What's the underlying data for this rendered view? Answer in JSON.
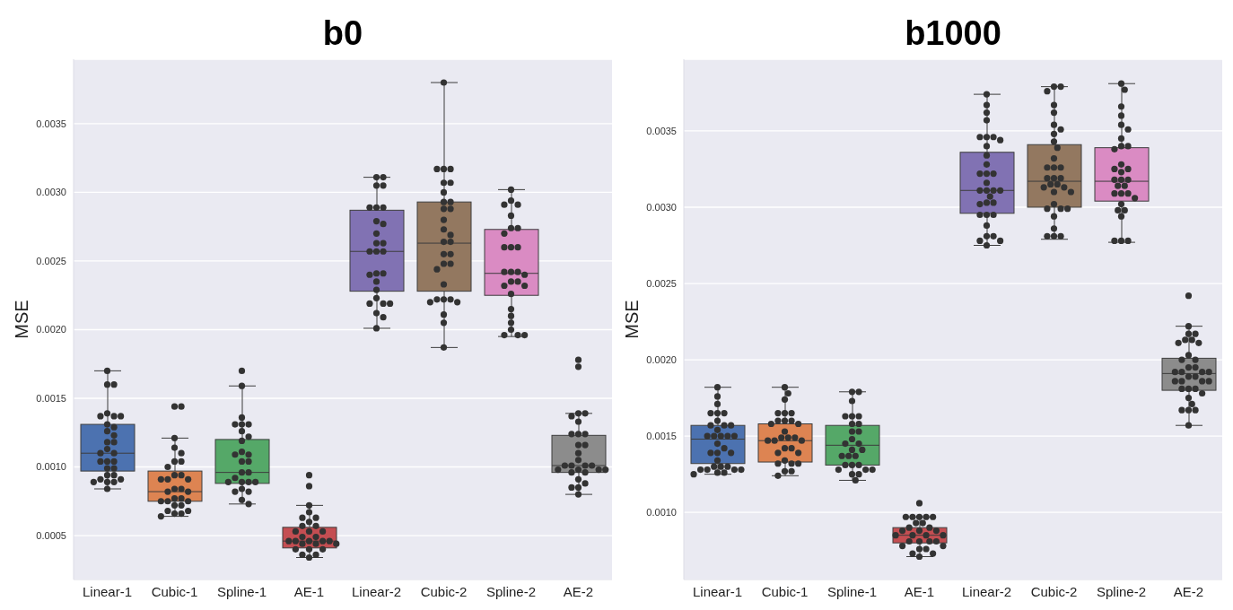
{
  "chart_data": [
    {
      "type": "box",
      "title": "b0",
      "ylabel": "MSE",
      "categories": [
        "Linear-1",
        "Cubic-1",
        "Spline-1",
        "AE-1",
        "Linear-2",
        "Cubic-2",
        "Spline-2",
        "AE-2"
      ],
      "colors": [
        "#4c72b0",
        "#dd8452",
        "#55a868",
        "#c44e52",
        "#8172b3",
        "#937860",
        "#da8bc3",
        "#8c8c8c"
      ],
      "boxes": [
        {
          "low": 0.00084,
          "q1": 0.00097,
          "median": 0.0011,
          "q3": 0.00131,
          "high": 0.0017
        },
        {
          "low": 0.00064,
          "q1": 0.00075,
          "median": 0.00082,
          "q3": 0.00097,
          "high": 0.00121
        },
        {
          "low": 0.00073,
          "q1": 0.00088,
          "median": 0.00096,
          "q3": 0.0012,
          "high": 0.00159
        },
        {
          "low": 0.00034,
          "q1": 0.00041,
          "median": 0.00046,
          "q3": 0.00056,
          "high": 0.00072
        },
        {
          "low": 0.00201,
          "q1": 0.00228,
          "median": 0.00257,
          "q3": 0.00287,
          "high": 0.00311
        },
        {
          "low": 0.00187,
          "q1": 0.00228,
          "median": 0.00263,
          "q3": 0.00293,
          "high": 0.0038
        },
        {
          "low": 0.00195,
          "q1": 0.00225,
          "median": 0.00241,
          "q3": 0.00273,
          "high": 0.00302
        },
        {
          "low": 0.0008,
          "q1": 0.00096,
          "median": 0.00101,
          "q3": 0.00123,
          "high": 0.00139
        }
      ],
      "series": [
        {
          "type": "scatter",
          "color": "#333333",
          "x": [
            "Linear-1",
            "Linear-1",
            "Linear-1",
            "Linear-1",
            "Linear-1",
            "Linear-1",
            "Linear-1",
            "Linear-1",
            "Linear-1",
            "Linear-1",
            "Linear-1",
            "Linear-1",
            "Linear-1",
            "Linear-1",
            "Linear-1",
            "Linear-1",
            "Linear-1",
            "Linear-1",
            "Linear-1",
            "Linear-1",
            "Linear-1",
            "Linear-1",
            "Linear-1",
            "Linear-1",
            "Linear-1",
            "Linear-1",
            "Linear-1",
            "Linear-1",
            "Linear-1",
            "Cubic-1",
            "Cubic-1",
            "Cubic-1",
            "Cubic-1",
            "Cubic-1",
            "Cubic-1",
            "Cubic-1",
            "Cubic-1",
            "Cubic-1",
            "Cubic-1",
            "Cubic-1",
            "Cubic-1",
            "Cubic-1",
            "Cubic-1",
            "Cubic-1",
            "Cubic-1",
            "Cubic-1",
            "Cubic-1",
            "Cubic-1",
            "Cubic-1",
            "Cubic-1",
            "Cubic-1",
            "Cubic-1",
            "Cubic-1",
            "Cubic-1",
            "Cubic-1",
            "Cubic-1",
            "Cubic-1",
            "Cubic-1",
            "Spline-1",
            "Spline-1",
            "Spline-1",
            "Spline-1",
            "Spline-1",
            "Spline-1",
            "Spline-1",
            "Spline-1",
            "Spline-1",
            "Spline-1",
            "Spline-1",
            "Spline-1",
            "Spline-1",
            "Spline-1",
            "Spline-1",
            "Spline-1",
            "Spline-1",
            "Spline-1",
            "Spline-1",
            "Spline-1",
            "Spline-1",
            "Spline-1",
            "Spline-1",
            "Spline-1",
            "Spline-1",
            "Spline-1",
            "AE-1",
            "AE-1",
            "AE-1",
            "AE-1",
            "AE-1",
            "AE-1",
            "AE-1",
            "AE-1",
            "AE-1",
            "AE-1",
            "AE-1",
            "AE-1",
            "AE-1",
            "AE-1",
            "AE-1",
            "AE-1",
            "AE-1",
            "AE-1",
            "AE-1",
            "AE-1",
            "AE-1",
            "AE-1",
            "AE-1",
            "AE-1",
            "AE-1",
            "AE-1",
            "AE-1",
            "AE-1",
            "Linear-2",
            "Linear-2",
            "Linear-2",
            "Linear-2",
            "Linear-2",
            "Linear-2",
            "Linear-2",
            "Linear-2",
            "Linear-2",
            "Linear-2",
            "Linear-2",
            "Linear-2",
            "Linear-2",
            "Linear-2",
            "Linear-2",
            "Linear-2",
            "Linear-2",
            "Linear-2",
            "Linear-2",
            "Linear-2",
            "Linear-2",
            "Linear-2",
            "Linear-2",
            "Linear-2",
            "Linear-2",
            "Linear-2",
            "Linear-2",
            "Cubic-2",
            "Cubic-2",
            "Cubic-2",
            "Cubic-2",
            "Cubic-2",
            "Cubic-2",
            "Cubic-2",
            "Cubic-2",
            "Cubic-2",
            "Cubic-2",
            "Cubic-2",
            "Cubic-2",
            "Cubic-2",
            "Cubic-2",
            "Cubic-2",
            "Cubic-2",
            "Cubic-2",
            "Cubic-2",
            "Cubic-2",
            "Cubic-2",
            "Cubic-2",
            "Cubic-2",
            "Cubic-2",
            "Cubic-2",
            "Cubic-2",
            "Cubic-2",
            "Cubic-2",
            "Cubic-2",
            "Cubic-2",
            "Cubic-2",
            "Spline-2",
            "Spline-2",
            "Spline-2",
            "Spline-2",
            "Spline-2",
            "Spline-2",
            "Spline-2",
            "Spline-2",
            "Spline-2",
            "Spline-2",
            "Spline-2",
            "Spline-2",
            "Spline-2",
            "Spline-2",
            "Spline-2",
            "Spline-2",
            "Spline-2",
            "Spline-2",
            "Spline-2",
            "Spline-2",
            "Spline-2",
            "Spline-2",
            "Spline-2",
            "Spline-2",
            "Spline-2",
            "Spline-2",
            "Spline-2",
            "AE-2",
            "AE-2",
            "AE-2",
            "AE-2",
            "AE-2",
            "AE-2",
            "AE-2",
            "AE-2",
            "AE-2",
            "AE-2",
            "AE-2",
            "AE-2",
            "AE-2",
            "AE-2",
            "AE-2",
            "AE-2",
            "AE-2",
            "AE-2",
            "AE-2",
            "AE-2",
            "AE-2",
            "AE-2",
            "AE-2",
            "AE-2",
            "AE-2",
            "AE-2",
            "AE-2",
            "AE-2"
          ],
          "values": [
            0.0017,
            0.0016,
            0.0016,
            0.00139,
            0.00137,
            0.00137,
            0.00137,
            0.00131,
            0.00129,
            0.00126,
            0.00123,
            0.00118,
            0.00118,
            0.00113,
            0.0011,
            0.0011,
            0.00104,
            0.00104,
            0.00104,
            0.00099,
            0.00099,
            0.00094,
            0.00094,
            0.00091,
            0.00091,
            0.00089,
            0.00089,
            0.00089,
            0.00084,
            0.00144,
            0.00144,
            0.00121,
            0.00114,
            0.0011,
            0.00104,
            0.00104,
            0.001,
            0.00094,
            0.00094,
            0.00091,
            0.00091,
            0.00091,
            0.00084,
            0.00084,
            0.00082,
            0.00082,
            0.00077,
            0.00077,
            0.00075,
            0.00075,
            0.00075,
            0.00072,
            0.00072,
            0.00068,
            0.00068,
            0.00066,
            0.00066,
            0.00064,
            0.0017,
            0.00159,
            0.00136,
            0.00131,
            0.00131,
            0.00131,
            0.00126,
            0.00122,
            0.00119,
            0.00111,
            0.00109,
            0.00109,
            0.00104,
            0.00104,
            0.00096,
            0.00096,
            0.00092,
            0.00089,
            0.00089,
            0.00089,
            0.00089,
            0.00084,
            0.00082,
            0.00082,
            0.00076,
            0.00073,
            0.00094,
            0.00086,
            0.00072,
            0.00067,
            0.00063,
            0.00063,
            0.0006,
            0.00057,
            0.00057,
            0.00053,
            0.00053,
            0.00053,
            0.00049,
            0.00049,
            0.00046,
            0.00046,
            0.00046,
            0.00046,
            0.00046,
            0.00044,
            0.00044,
            0.00044,
            0.0004,
            0.0004,
            0.0004,
            0.00036,
            0.00036,
            0.00034,
            0.00311,
            0.00311,
            0.00305,
            0.00305,
            0.00289,
            0.00289,
            0.00289,
            0.00279,
            0.00277,
            0.0027,
            0.00263,
            0.00263,
            0.00257,
            0.00257,
            0.00257,
            0.00241,
            0.00241,
            0.0024,
            0.00235,
            0.00229,
            0.00223,
            0.00219,
            0.00219,
            0.00219,
            0.00212,
            0.00209,
            0.00201,
            0.0038,
            0.00317,
            0.00317,
            0.00317,
            0.00307,
            0.00307,
            0.003,
            0.00293,
            0.00293,
            0.00288,
            0.00288,
            0.0028,
            0.00273,
            0.00269,
            0.00264,
            0.00264,
            0.00255,
            0.00255,
            0.00248,
            0.00248,
            0.00244,
            0.00233,
            0.00222,
            0.00222,
            0.00222,
            0.0022,
            0.0022,
            0.00211,
            0.00205,
            0.00187,
            0.00302,
            0.00294,
            0.00291,
            0.00291,
            0.00283,
            0.00274,
            0.00274,
            0.0027,
            0.0026,
            0.0026,
            0.0026,
            0.00242,
            0.00242,
            0.00242,
            0.0024,
            0.00235,
            0.00235,
            0.00232,
            0.00232,
            0.00226,
            0.00215,
            0.0021,
            0.00205,
            0.002,
            0.00196,
            0.00196,
            0.00196,
            0.00178,
            0.00173,
            0.00139,
            0.00139,
            0.00137,
            0.00133,
            0.00124,
            0.00124,
            0.00124,
            0.00116,
            0.00116,
            0.0011,
            0.00105,
            0.00101,
            0.00101,
            0.00101,
            0.00101,
            0.00098,
            0.00098,
            0.00098,
            0.00098,
            0.00096,
            0.00096,
            0.00091,
            0.00088,
            0.00085,
            0.00085,
            0.0008
          ]
        }
      ],
      "ylim": [
        0.00018,
        0.00397
      ],
      "yticks": [
        {
          "value": 0.0005,
          "label": "0.0005"
        },
        {
          "value": 0.001,
          "label": "0.0010"
        },
        {
          "value": 0.0015,
          "label": "0.0015"
        },
        {
          "value": 0.002,
          "label": "0.0020"
        },
        {
          "value": 0.0025,
          "label": "0.0025"
        },
        {
          "value": 0.003,
          "label": "0.0030"
        },
        {
          "value": 0.0035,
          "label": "0.0035"
        }
      ],
      "grid": "y"
    },
    {
      "type": "box",
      "title": "b1000",
      "ylabel": "MSE",
      "categories": [
        "Linear-1",
        "Cubic-1",
        "Spline-1",
        "AE-1",
        "Linear-2",
        "Cubic-2",
        "Spline-2",
        "AE-2"
      ],
      "colors": [
        "#4c72b0",
        "#dd8452",
        "#55a868",
        "#c44e52",
        "#8172b3",
        "#937860",
        "#da8bc3",
        "#8c8c8c"
      ],
      "boxes": [
        {
          "low": 0.00125,
          "q1": 0.00132,
          "median": 0.00148,
          "q3": 0.00157,
          "high": 0.00182
        },
        {
          "low": 0.00124,
          "q1": 0.00133,
          "median": 0.00147,
          "q3": 0.00158,
          "high": 0.00182
        },
        {
          "low": 0.00121,
          "q1": 0.00131,
          "median": 0.00144,
          "q3": 0.00157,
          "high": 0.00179
        },
        {
          "low": 0.00071,
          "q1": 0.0008,
          "median": 0.00085,
          "q3": 0.0009,
          "high": 0.00097
        },
        {
          "low": 0.00275,
          "q1": 0.00296,
          "median": 0.00311,
          "q3": 0.00336,
          "high": 0.00374
        },
        {
          "low": 0.00279,
          "q1": 0.003,
          "median": 0.00317,
          "q3": 0.00341,
          "high": 0.00379
        },
        {
          "low": 0.00277,
          "q1": 0.00304,
          "median": 0.00317,
          "q3": 0.00339,
          "high": 0.00381
        },
        {
          "low": 0.00157,
          "q1": 0.0018,
          "median": 0.00191,
          "q3": 0.00201,
          "high": 0.00222
        }
      ],
      "series": [
        {
          "type": "scatter",
          "color": "#333333",
          "x": [
            "Linear-1",
            "Linear-1",
            "Linear-1",
            "Linear-1",
            "Linear-1",
            "Linear-1",
            "Linear-1",
            "Linear-1",
            "Linear-1",
            "Linear-1",
            "Linear-1",
            "Linear-1",
            "Linear-1",
            "Linear-1",
            "Linear-1",
            "Linear-1",
            "Linear-1",
            "Linear-1",
            "Linear-1",
            "Linear-1",
            "Linear-1",
            "Linear-1",
            "Linear-1",
            "Linear-1",
            "Linear-1",
            "Linear-1",
            "Linear-1",
            "Linear-1",
            "Linear-1",
            "Linear-1",
            "Linear-1",
            "Linear-1",
            "Cubic-1",
            "Cubic-1",
            "Cubic-1",
            "Cubic-1",
            "Cubic-1",
            "Cubic-1",
            "Cubic-1",
            "Cubic-1",
            "Cubic-1",
            "Cubic-1",
            "Cubic-1",
            "Cubic-1",
            "Cubic-1",
            "Cubic-1",
            "Cubic-1",
            "Cubic-1",
            "Cubic-1",
            "Cubic-1",
            "Cubic-1",
            "Cubic-1",
            "Cubic-1",
            "Cubic-1",
            "Cubic-1",
            "Cubic-1",
            "Cubic-1",
            "Cubic-1",
            "Cubic-1",
            "Cubic-1",
            "Cubic-1",
            "Spline-1",
            "Spline-1",
            "Spline-1",
            "Spline-1",
            "Spline-1",
            "Spline-1",
            "Spline-1",
            "Spline-1",
            "Spline-1",
            "Spline-1",
            "Spline-1",
            "Spline-1",
            "Spline-1",
            "Spline-1",
            "Spline-1",
            "Spline-1",
            "Spline-1",
            "Spline-1",
            "Spline-1",
            "Spline-1",
            "Spline-1",
            "Spline-1",
            "Spline-1",
            "Spline-1",
            "Spline-1",
            "Spline-1",
            "Spline-1",
            "AE-1",
            "AE-1",
            "AE-1",
            "AE-1",
            "AE-1",
            "AE-1",
            "AE-1",
            "AE-1",
            "AE-1",
            "AE-1",
            "AE-1",
            "AE-1",
            "AE-1",
            "AE-1",
            "AE-1",
            "AE-1",
            "AE-1",
            "AE-1",
            "AE-1",
            "AE-1",
            "AE-1",
            "AE-1",
            "AE-1",
            "AE-1",
            "AE-1",
            "AE-1",
            "AE-1",
            "AE-1",
            "Linear-2",
            "Linear-2",
            "Linear-2",
            "Linear-2",
            "Linear-2",
            "Linear-2",
            "Linear-2",
            "Linear-2",
            "Linear-2",
            "Linear-2",
            "Linear-2",
            "Linear-2",
            "Linear-2",
            "Linear-2",
            "Linear-2",
            "Linear-2",
            "Linear-2",
            "Linear-2",
            "Linear-2",
            "Linear-2",
            "Linear-2",
            "Linear-2",
            "Linear-2",
            "Linear-2",
            "Linear-2",
            "Linear-2",
            "Linear-2",
            "Linear-2",
            "Linear-2",
            "Linear-2",
            "Linear-2",
            "Linear-2",
            "Cubic-2",
            "Cubic-2",
            "Cubic-2",
            "Cubic-2",
            "Cubic-2",
            "Cubic-2",
            "Cubic-2",
            "Cubic-2",
            "Cubic-2",
            "Cubic-2",
            "Cubic-2",
            "Cubic-2",
            "Cubic-2",
            "Cubic-2",
            "Cubic-2",
            "Cubic-2",
            "Cubic-2",
            "Cubic-2",
            "Cubic-2",
            "Cubic-2",
            "Cubic-2",
            "Cubic-2",
            "Cubic-2",
            "Cubic-2",
            "Cubic-2",
            "Cubic-2",
            "Cubic-2",
            "Cubic-2",
            "Cubic-2",
            "Cubic-2",
            "Cubic-2",
            "Cubic-2",
            "Spline-2",
            "Spline-2",
            "Spline-2",
            "Spline-2",
            "Spline-2",
            "Spline-2",
            "Spline-2",
            "Spline-2",
            "Spline-2",
            "Spline-2",
            "Spline-2",
            "Spline-2",
            "Spline-2",
            "Spline-2",
            "Spline-2",
            "Spline-2",
            "Spline-2",
            "Spline-2",
            "Spline-2",
            "Spline-2",
            "Spline-2",
            "Spline-2",
            "Spline-2",
            "Spline-2",
            "Spline-2",
            "Spline-2",
            "Spline-2",
            "Spline-2",
            "Spline-2",
            "Spline-2",
            "AE-2",
            "AE-2",
            "AE-2",
            "AE-2",
            "AE-2",
            "AE-2",
            "AE-2",
            "AE-2",
            "AE-2",
            "AE-2",
            "AE-2",
            "AE-2",
            "AE-2",
            "AE-2",
            "AE-2",
            "AE-2",
            "AE-2",
            "AE-2",
            "AE-2",
            "AE-2",
            "AE-2",
            "AE-2",
            "AE-2",
            "AE-2",
            "AE-2",
            "AE-2",
            "AE-2",
            "AE-2",
            "AE-2",
            "AE-2",
            "AE-2",
            "AE-2",
            "AE-2"
          ],
          "values": [
            0.00182,
            0.00176,
            0.00171,
            0.00165,
            0.00165,
            0.00165,
            0.0016,
            0.00157,
            0.00157,
            0.00157,
            0.00154,
            0.0015,
            0.0015,
            0.0015,
            0.0015,
            0.0015,
            0.00145,
            0.00142,
            0.00139,
            0.00139,
            0.00139,
            0.00134,
            0.0013,
            0.0013,
            0.0013,
            0.00128,
            0.00128,
            0.00128,
            0.00128,
            0.00126,
            0.00126,
            0.00125,
            0.00182,
            0.00178,
            0.00174,
            0.00165,
            0.00165,
            0.00165,
            0.0016,
            0.0016,
            0.0016,
            0.00158,
            0.00158,
            0.00153,
            0.00149,
            0.00149,
            0.00149,
            0.00147,
            0.00147,
            0.00147,
            0.00142,
            0.00142,
            0.00139,
            0.00139,
            0.00134,
            0.00132,
            0.00132,
            0.00132,
            0.00127,
            0.00127,
            0.00124,
            0.00179,
            0.00179,
            0.00173,
            0.00163,
            0.00163,
            0.00163,
            0.00158,
            0.00158,
            0.00153,
            0.00153,
            0.00148,
            0.00145,
            0.00145,
            0.00141,
            0.00141,
            0.00137,
            0.00137,
            0.00137,
            0.00131,
            0.00131,
            0.00131,
            0.00128,
            0.00128,
            0.00128,
            0.00125,
            0.00125,
            0.00121,
            0.00106,
            0.00097,
            0.00097,
            0.00097,
            0.00097,
            0.00097,
            0.00093,
            0.00093,
            0.0009,
            0.0009,
            0.00088,
            0.00088,
            0.00088,
            0.00085,
            0.00085,
            0.00085,
            0.00085,
            0.00081,
            0.00081,
            0.00081,
            0.00081,
            0.00078,
            0.00078,
            0.00076,
            0.00076,
            0.00073,
            0.00073,
            0.00071,
            0.00374,
            0.00367,
            0.00362,
            0.00357,
            0.00346,
            0.00346,
            0.00346,
            0.00344,
            0.0034,
            0.00334,
            0.00328,
            0.00322,
            0.00322,
            0.00322,
            0.00316,
            0.00311,
            0.00311,
            0.00311,
            0.00311,
            0.00307,
            0.00303,
            0.00303,
            0.00302,
            0.00295,
            0.00295,
            0.00295,
            0.00288,
            0.00281,
            0.00281,
            0.00278,
            0.00278,
            0.00275,
            0.00379,
            0.00379,
            0.00376,
            0.00367,
            0.00362,
            0.00354,
            0.00351,
            0.00348,
            0.00343,
            0.00339,
            0.00332,
            0.00326,
            0.00326,
            0.00326,
            0.00319,
            0.00319,
            0.00319,
            0.00315,
            0.00315,
            0.00313,
            0.00313,
            0.0031,
            0.0031,
            0.00302,
            0.00299,
            0.00299,
            0.00299,
            0.00294,
            0.00286,
            0.00281,
            0.00281,
            0.00281,
            0.00381,
            0.00377,
            0.00366,
            0.0036,
            0.00354,
            0.00351,
            0.00345,
            0.0034,
            0.0034,
            0.00338,
            0.00328,
            0.00325,
            0.00325,
            0.00323,
            0.00318,
            0.00318,
            0.00318,
            0.00314,
            0.00314,
            0.00309,
            0.00309,
            0.00309,
            0.00306,
            0.00302,
            0.00298,
            0.00298,
            0.00294,
            0.00278,
            0.00278,
            0.00278,
            0.00242,
            0.00222,
            0.00217,
            0.00217,
            0.00213,
            0.00213,
            0.00211,
            0.00211,
            0.00203,
            0.002,
            0.002,
            0.00195,
            0.00195,
            0.00192,
            0.00192,
            0.00192,
            0.00192,
            0.00189,
            0.00189,
            0.00186,
            0.00186,
            0.00186,
            0.00186,
            0.00181,
            0.00181,
            0.00181,
            0.00178,
            0.00175,
            0.00171,
            0.00167,
            0.00167,
            0.00167,
            0.00157
          ]
        }
      ],
      "ylim": [
        0.00056,
        0.00397
      ],
      "yticks": [
        {
          "value": 0.001,
          "label": "0.0010"
        },
        {
          "value": 0.0015,
          "label": "0.0015"
        },
        {
          "value": 0.002,
          "label": "0.0020"
        },
        {
          "value": 0.0025,
          "label": "0.0025"
        },
        {
          "value": 0.003,
          "label": "0.0030"
        },
        {
          "value": 0.0035,
          "label": "0.0035"
        }
      ],
      "grid": "y"
    }
  ]
}
